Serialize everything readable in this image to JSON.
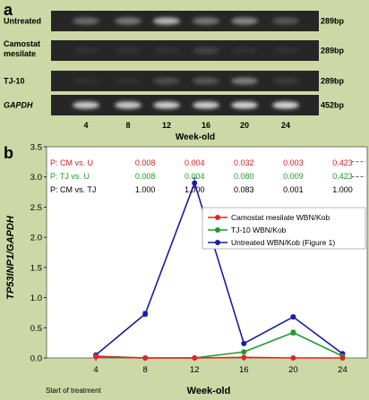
{
  "panel_a": {
    "letter": "a",
    "lanes": [
      {
        "label": "Untreated",
        "bp": "289bp",
        "italic": false,
        "intensity": [
          0.35,
          0.42,
          0.75,
          0.42,
          0.5,
          0.25
        ]
      },
      {
        "label": "Camostat\nmesilate",
        "bp": "289bp",
        "italic": false,
        "intensity": [
          0.05,
          0.05,
          0.05,
          0.15,
          0.05,
          0.05
        ]
      },
      {
        "label": "TJ-10",
        "bp": "289bp",
        "italic": false,
        "intensity": [
          0.05,
          0.05,
          0.2,
          0.25,
          0.45,
          0.1
        ]
      },
      {
        "label": "GAPDH",
        "bp": "452bp",
        "italic": true,
        "intensity": [
          0.85,
          0.85,
          0.88,
          0.88,
          0.9,
          0.92
        ]
      }
    ],
    "weeks": [
      "4",
      "8",
      "12",
      "16",
      "20",
      "24"
    ],
    "xlabel": "Week-old",
    "colors": {
      "gel_bg": "#262626",
      "band": "#e8e8e8"
    }
  },
  "panel_b": {
    "letter": "b",
    "pvalues": [
      {
        "label": "P: CM vs. U",
        "color": "#d42020",
        "values": [
          "0.008",
          "0.004",
          "0.032",
          "0.003",
          "0.423"
        ]
      },
      {
        "label": "P: TJ vs. U",
        "color": "#1f9a2a",
        "values": [
          "0.008",
          "0.004",
          "0.080",
          "0.009",
          "0.423"
        ]
      },
      {
        "label": "P: CM vs. TJ",
        "color": "#000000",
        "values": [
          "1.000",
          "1.000",
          "0.083",
          "0.001",
          "1.000"
        ]
      }
    ],
    "annotation": "Start of treatment"
  },
  "chart_data": {
    "type": "line",
    "xlabel": "Week-old",
    "ylabel": "TP53INP1/GAPDH",
    "x": [
      4,
      8,
      12,
      16,
      20,
      24
    ],
    "xlim": [
      0,
      26
    ],
    "ylim": [
      0,
      3.5
    ],
    "yticks": [
      "0.0",
      "0.5",
      "1.0",
      "1.5",
      "2.0",
      "2.5",
      "3.0",
      "3.5"
    ],
    "xticks": [
      "4",
      "8",
      "12",
      "16",
      "20",
      "24"
    ],
    "legend_position": "middle-right",
    "series": [
      {
        "name": "Camostat mesilate WBN/Kob",
        "color": "#e8202a",
        "x": [
          4,
          8,
          12,
          16,
          20,
          24
        ],
        "values": [
          0.02,
          0.0,
          0.0,
          0.01,
          0.0,
          0.0
        ],
        "errors": [
          0,
          0,
          0,
          0,
          0,
          0
        ]
      },
      {
        "name": "TJ-10 WBN/Kob",
        "color": "#1f9a2a",
        "x": [
          4,
          8,
          12,
          16,
          20,
          24
        ],
        "values": [
          0.03,
          0.0,
          0.0,
          0.1,
          0.42,
          0.03
        ],
        "errors": [
          0,
          0,
          0,
          0.02,
          0.04,
          0
        ]
      },
      {
        "name": "Untreated WBN/Kob (Figure 1)",
        "color": "#1c1c9c",
        "x": [
          4,
          8,
          12,
          16,
          20,
          24
        ],
        "values": [
          0.05,
          0.73,
          2.9,
          0.24,
          0.68,
          0.07
        ],
        "errors": [
          0,
          0.04,
          0.08,
          0.02,
          0.03,
          0
        ]
      }
    ]
  }
}
